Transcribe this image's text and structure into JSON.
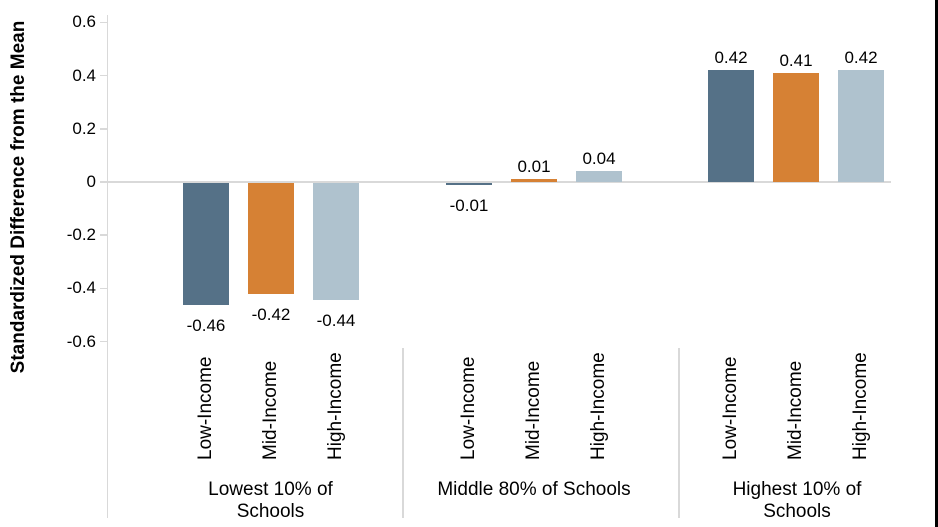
{
  "figure": {
    "background": "#ffffff",
    "right_border_color": "#000000"
  },
  "chart_data": {
    "type": "bar",
    "title": "",
    "ylabel": "Standardized Difference from the Mean",
    "xlabel": "",
    "ylim": [
      -0.6,
      0.6
    ],
    "grid": "zero-baseline only",
    "legend_position": "none",
    "axis_color": "#d9d9d9",
    "ytick_values": [
      0.6,
      0.4,
      0.2,
      0,
      -0.2,
      -0.4,
      -0.6
    ],
    "ytick_labels": [
      "0.6",
      "0.4",
      "0.2",
      "0",
      "-0.2",
      "-0.4",
      "-0.6"
    ],
    "categories": [
      "Lowest 10% of Schools",
      "Middle 80% of Schools",
      "Highest 10% of Schools"
    ],
    "groups": [
      {
        "label_lines": [
          "Lowest 10% of",
          "Schools"
        ]
      },
      {
        "label_lines": [
          "Middle 80% of Schools"
        ]
      },
      {
        "label_lines": [
          "Highest 10% of",
          "Schools"
        ]
      }
    ],
    "series": [
      {
        "name": "Low-Income",
        "color": "#557187",
        "values": [
          -0.46,
          -0.01,
          0.42
        ],
        "labels": [
          "-0.46",
          "-0.01",
          "0.42"
        ]
      },
      {
        "name": "Mid-Income",
        "color": "#d68134",
        "values": [
          -0.42,
          0.01,
          0.41
        ],
        "labels": [
          "-0.42",
          "0.01",
          "0.41"
        ]
      },
      {
        "name": "High-Income",
        "color": "#afc2ce",
        "values": [
          -0.44,
          0.04,
          0.42
        ],
        "labels": [
          "-0.44",
          "0.04",
          "0.42"
        ]
      }
    ]
  }
}
